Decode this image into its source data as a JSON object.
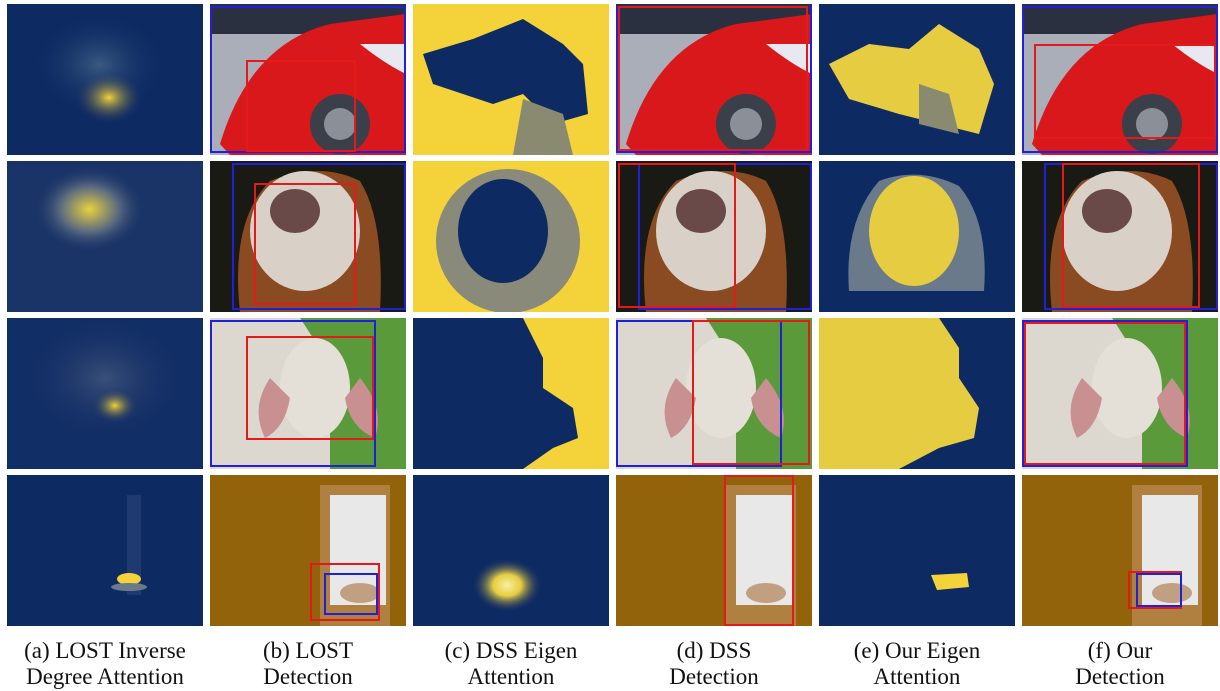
{
  "colors": {
    "heat_low": "#0e2a63",
    "heat_mid": "#6a7a8a",
    "heat_high": "#f3d23a",
    "box_red": "#e41a1a",
    "box_blue": "#2020d8"
  },
  "columns": [
    {
      "key": "a",
      "line1": "(a) LOST Inverse",
      "line2": "Degree Attention",
      "kind": "heatmap"
    },
    {
      "key": "b",
      "line1": "(b) LOST",
      "line2": "Detection",
      "kind": "photo"
    },
    {
      "key": "c",
      "line1": "(c) DSS Eigen",
      "line2": "Attention",
      "kind": "heatmap"
    },
    {
      "key": "d",
      "line1": "(d) DSS",
      "line2": "Detection",
      "kind": "photo"
    },
    {
      "key": "e",
      "line1": "(e) Our Eigen",
      "line2": "Attention",
      "kind": "heatmap"
    },
    {
      "key": "f",
      "line1": "(f) Our",
      "line2": "Detection",
      "kind": "photo"
    }
  ],
  "rows": [
    {
      "subject": "red-car",
      "photo_colors": [
        "#a9aeb8",
        "#d8181a",
        "#3a3f4a"
      ]
    },
    {
      "subject": "dog",
      "photo_colors": [
        "#1a1a14",
        "#d9d0c8",
        "#8a4a22"
      ]
    },
    {
      "subject": "cow",
      "photo_colors": [
        "#5a9a3a",
        "#dcd8d0",
        "#b8b0a8"
      ]
    },
    {
      "subject": "cat-window",
      "photo_colors": [
        "#9a6a10",
        "#e8e8e8",
        "#5a3a08"
      ]
    }
  ]
}
